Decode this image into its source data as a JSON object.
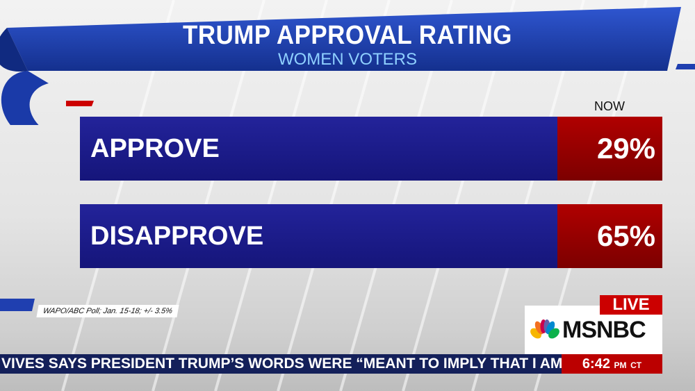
{
  "header": {
    "title": "TRUMP APPROVAL RATING",
    "subtitle": "WOMEN VOTERS",
    "column_label": "NOW"
  },
  "chart_data": {
    "type": "table",
    "title": "TRUMP APPROVAL RATING",
    "subtitle": "WOMEN VOTERS",
    "column": "NOW",
    "categories": [
      "APPROVE",
      "DISAPPROVE"
    ],
    "values": [
      29,
      65
    ],
    "value_labels": [
      "29%",
      "65%"
    ]
  },
  "source": "WAPO/ABC Poll; Jan. 15-18; +/- 3.5%",
  "network": {
    "live": "LIVE",
    "name": "MSNBC"
  },
  "ticker": {
    "text": "VIVES SAYS PRESIDENT TRUMP’S WORDS WERE “MEANT TO IMPLY THAT I AM A LI",
    "time": "6:42",
    "ampm": "PM",
    "tz": "CT"
  },
  "colors": {
    "bar": "#1a1a88",
    "value": "#a00000",
    "banner": "#1f3fb0",
    "ticker": "#14205a"
  }
}
